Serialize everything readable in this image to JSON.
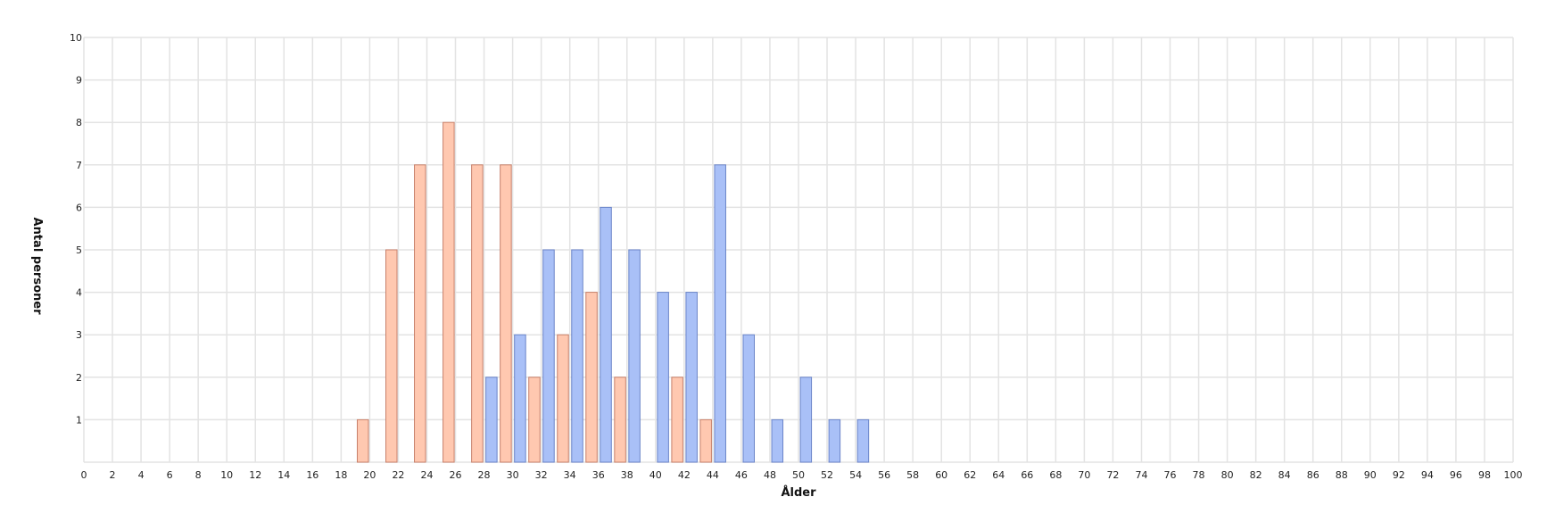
{
  "chart_data": {
    "type": "bar",
    "xlabel": "Ålder",
    "ylabel": "Antal personer",
    "xlim": [
      0,
      100
    ],
    "ylim": [
      0,
      10
    ],
    "x_tick_step": 2,
    "y_tick_step": 1,
    "grid": true,
    "series": [
      {
        "color": "#ffc8b0",
        "stroke": "#c8806a",
        "points": [
          {
            "x": 20,
            "y": 1
          },
          {
            "x": 22,
            "y": 5
          },
          {
            "x": 24,
            "y": 7
          },
          {
            "x": 26,
            "y": 8
          },
          {
            "x": 28,
            "y": 7
          },
          {
            "x": 30,
            "y": 7
          },
          {
            "x": 32,
            "y": 2
          },
          {
            "x": 34,
            "y": 3
          },
          {
            "x": 36,
            "y": 4
          },
          {
            "x": 38,
            "y": 2
          },
          {
            "x": 42,
            "y": 2
          },
          {
            "x": 44,
            "y": 1
          }
        ]
      },
      {
        "color": "#a9c0f7",
        "stroke": "#6a84c8",
        "points": [
          {
            "x": 29,
            "y": 2
          },
          {
            "x": 31,
            "y": 3
          },
          {
            "x": 33,
            "y": 5
          },
          {
            "x": 35,
            "y": 5
          },
          {
            "x": 37,
            "y": 6
          },
          {
            "x": 39,
            "y": 5
          },
          {
            "x": 41,
            "y": 4
          },
          {
            "x": 43,
            "y": 4
          },
          {
            "x": 45,
            "y": 7
          },
          {
            "x": 47,
            "y": 3
          },
          {
            "x": 49,
            "y": 1
          },
          {
            "x": 51,
            "y": 2
          },
          {
            "x": 53,
            "y": 1
          },
          {
            "x": 55,
            "y": 1
          }
        ]
      }
    ]
  }
}
